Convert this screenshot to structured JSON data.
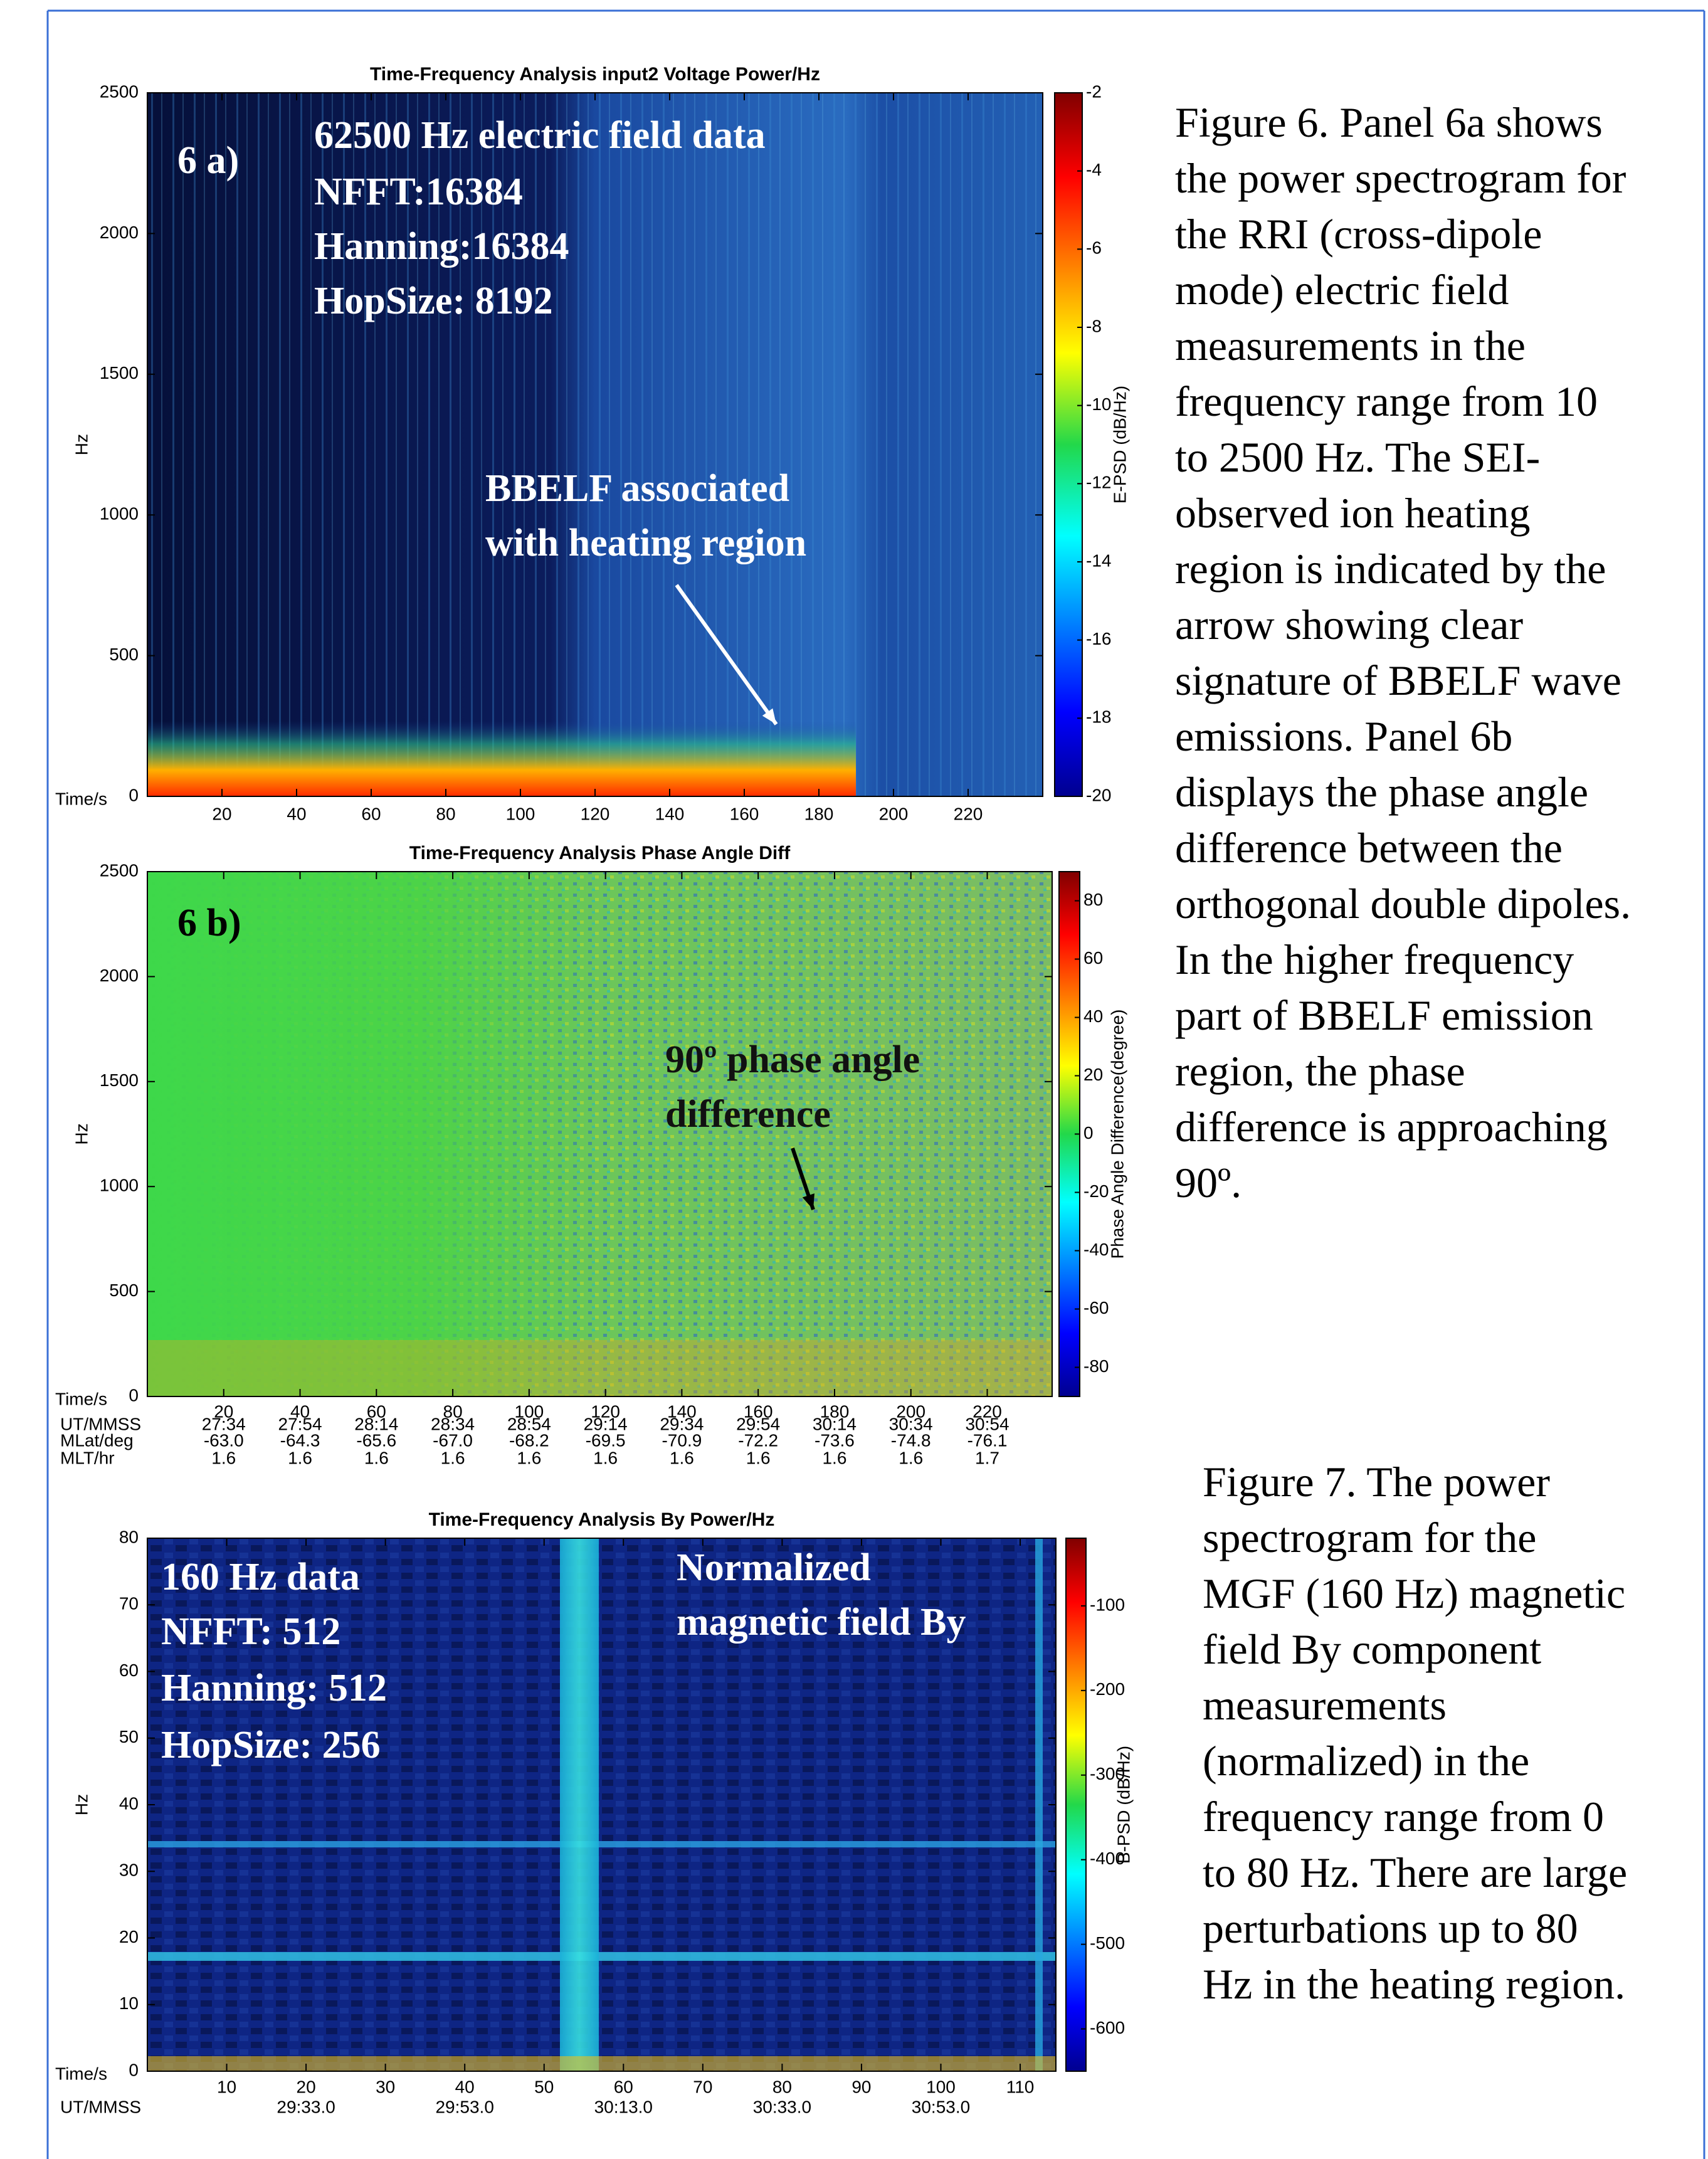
{
  "chart_data": [
    {
      "type": "spectrogram",
      "title": "Time-Frequency Analysis input2 Voltage Power/Hz",
      "xlabel": "Time/s",
      "ylabel": "Hz",
      "xlim": [
        0,
        240
      ],
      "xticks": [
        20,
        40,
        60,
        80,
        100,
        120,
        140,
        160,
        180,
        200,
        220
      ],
      "ylim": [
        0,
        2500
      ],
      "yticks": [
        0,
        500,
        1000,
        1500,
        2000,
        2500
      ],
      "colorbar_label": "E-PSD (dB/Hz)",
      "clim": [
        -20,
        -2
      ],
      "cticks": [
        -2,
        -4,
        -6,
        -8,
        -10,
        -12,
        -14,
        -16,
        -18,
        -20
      ],
      "annotations": [
        "6 a)",
        "62500 Hz electric field data",
        "NFFT:16384",
        "Hanning:16384",
        "HopSize: 8192",
        "BBELF associated",
        "with heating region"
      ]
    },
    {
      "type": "spectrogram",
      "title": "Time-Frequency Analysis Phase Angle Diff",
      "xlabel": "Time/s",
      "ylabel": "Hz",
      "xlim": [
        0,
        237
      ],
      "xticks": [
        20,
        40,
        60,
        80,
        100,
        120,
        140,
        160,
        180,
        200,
        220
      ],
      "ylim": [
        0,
        2500
      ],
      "yticks": [
        0,
        500,
        1000,
        1500,
        2000,
        2500
      ],
      "colorbar_label": "Phase Angle Difference(degree)",
      "clim": [
        -90,
        90
      ],
      "cticks": [
        80,
        60,
        40,
        20,
        0,
        -20,
        -40,
        -60,
        -80
      ],
      "annotations": [
        "6 b)",
        "90º phase angle",
        "difference"
      ],
      "aux_rows": [
        {
          "name": "UT/MMSS",
          "x": [
            20,
            40,
            60,
            80,
            100,
            120,
            140,
            160,
            180,
            200,
            220
          ],
          "labels": [
            "27:34",
            "27:54",
            "28:14",
            "28:34",
            "28:54",
            "29:14",
            "29:34",
            "29:54",
            "30:14",
            "30:34",
            "30:54"
          ]
        },
        {
          "name": "MLat/deg",
          "x": [
            20,
            40,
            60,
            80,
            100,
            120,
            140,
            160,
            180,
            200,
            220
          ],
          "labels": [
            "-63.0",
            "-64.3",
            "-65.6",
            "-67.0",
            "-68.2",
            "-69.5",
            "-70.9",
            "-72.2",
            "-73.6",
            "-74.8",
            "-76.1"
          ]
        },
        {
          "name": "MLT/hr",
          "x": [
            20,
            40,
            60,
            80,
            100,
            120,
            140,
            160,
            180,
            200,
            220
          ],
          "labels": [
            "1.6",
            "1.6",
            "1.6",
            "1.6",
            "1.6",
            "1.6",
            "1.6",
            "1.6",
            "1.6",
            "1.6",
            "1.7"
          ]
        }
      ]
    },
    {
      "type": "spectrogram",
      "title": "Time-Frequency Analysis By Power/Hz",
      "xlabel": "Time/s",
      "ylabel": "Hz",
      "xlim": [
        0,
        114.5
      ],
      "xticks": [
        10,
        20,
        30,
        40,
        50,
        60,
        70,
        80,
        90,
        100,
        110
      ],
      "ylim": [
        0,
        80
      ],
      "yticks": [
        0,
        10,
        20,
        30,
        40,
        50,
        60,
        70,
        80
      ],
      "colorbar_label": "B-PSD (dB/Hz)",
      "clim": [
        -650,
        -20
      ],
      "cticks": [
        -100,
        -200,
        -300,
        -400,
        -500,
        -600
      ],
      "annotations": [
        "160 Hz data",
        "NFFT: 512",
        "Hanning: 512",
        "HopSize: 256",
        "Normalized",
        "magnetic field By"
      ],
      "aux_rows": [
        {
          "name": "UT/MMSS",
          "x": [
            20,
            40,
            60,
            80,
            100
          ],
          "labels": [
            "29:33.0",
            "29:53.0",
            "30:13.0",
            "30:33.0",
            "30:53.0"
          ]
        }
      ]
    }
  ],
  "captions": [
    {
      "lines": [
        "Figure 6. Panel 6a shows",
        "the power spectrogram for",
        "the RRI (cross-dipole",
        "mode) electric field",
        "measurements in the",
        "frequency range from 10",
        "to 2500 Hz. The SEI-",
        "observed ion heating",
        "region is indicated by the",
        "arrow showing clear",
        "signature of BBELF wave",
        "emissions. Panel 6b",
        "displays the phase angle",
        "difference between the",
        "orthogonal double dipoles.",
        "In the higher frequency",
        "part of BBELF emission",
        "region, the phase",
        "difference is approaching",
        "90º."
      ]
    },
    {
      "lines": [
        "Figure 7. The power",
        "spectrogram for the",
        "MGF (160 Hz) magnetic",
        "field By component",
        "measurements",
        "(normalized) in the",
        "frequency range from 0",
        "to 80 Hz. There are large",
        "perturbations up to 80",
        "Hz in the heating region."
      ]
    }
  ]
}
